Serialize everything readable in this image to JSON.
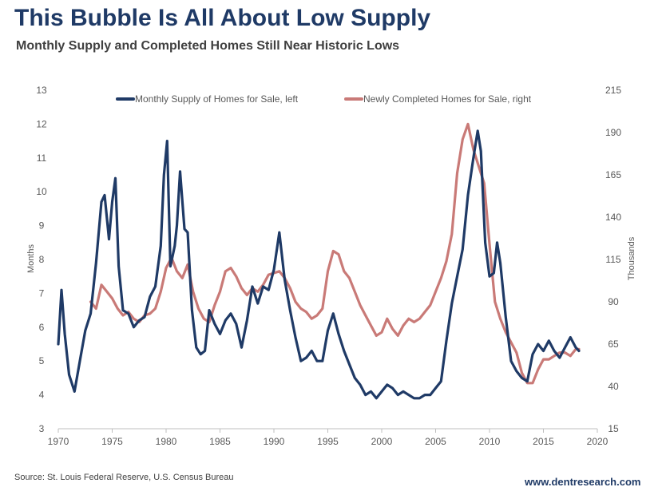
{
  "header": {
    "title": "This Bubble Is All About Low Supply",
    "subtitle": "Monthly Supply and Completed Homes Still Near Historic Lows"
  },
  "footer": {
    "source": "Source: St. Louis Federal Reserve, U.S. Census Bureau",
    "website": "www.dentresearch.com"
  },
  "colors": {
    "supply": "#1f3a66",
    "completed": "#c97a77"
  },
  "chart_data": {
    "type": "line",
    "title": "",
    "x_axis": {
      "min": 1970,
      "max": 2020,
      "ticks": [
        "1970",
        "1975",
        "1980",
        "1985",
        "1990",
        "1995",
        "2000",
        "2005",
        "2010",
        "2015",
        "2020"
      ]
    },
    "y_left": {
      "label": "Months",
      "min": 3,
      "max": 13,
      "ticks": [
        "3",
        "4",
        "5",
        "6",
        "7",
        "8",
        "9",
        "10",
        "11",
        "12",
        "13"
      ]
    },
    "y_right": {
      "label": "Thousands",
      "min": 15,
      "max": 215,
      "ticks": [
        "15",
        "40",
        "65",
        "90",
        "115",
        "140",
        "165",
        "190",
        "215"
      ]
    },
    "legend": {
      "position": "top-center"
    },
    "series": [
      {
        "name": "Monthly Supply of Homes for Sale, left",
        "axis": "left",
        "x": [
          1970.0,
          1970.3,
          1970.6,
          1971.0,
          1971.5,
          1972.0,
          1972.5,
          1973.0,
          1973.5,
          1974.0,
          1974.3,
          1974.7,
          1975.0,
          1975.3,
          1975.6,
          1976.0,
          1976.5,
          1977.0,
          1977.5,
          1978.0,
          1978.5,
          1979.0,
          1979.5,
          1979.8,
          1980.1,
          1980.4,
          1980.8,
          1981.0,
          1981.3,
          1981.7,
          1982.0,
          1982.4,
          1982.8,
          1983.2,
          1983.6,
          1984.0,
          1984.5,
          1985.0,
          1985.5,
          1986.0,
          1986.5,
          1987.0,
          1987.5,
          1988.0,
          1988.5,
          1989.0,
          1989.5,
          1990.0,
          1990.5,
          1991.0,
          1991.5,
          1992.0,
          1992.5,
          1993.0,
          1993.5,
          1994.0,
          1994.5,
          1995.0,
          1995.5,
          1996.0,
          1996.5,
          1997.0,
          1997.5,
          1998.0,
          1998.5,
          1999.0,
          1999.5,
          2000.0,
          2000.5,
          2001.0,
          2001.5,
          2002.0,
          2002.5,
          2003.0,
          2003.5,
          2004.0,
          2004.5,
          2005.0,
          2005.5,
          2006.0,
          2006.5,
          2007.0,
          2007.5,
          2008.0,
          2008.5,
          2008.9,
          2009.2,
          2009.6,
          2010.0,
          2010.4,
          2010.7,
          2011.0,
          2011.5,
          2012.0,
          2012.5,
          2013.0,
          2013.5,
          2014.0,
          2014.5,
          2015.0,
          2015.5,
          2016.0,
          2016.5,
          2017.0,
          2017.5,
          2018.0,
          2018.3
        ],
        "values": [
          5.5,
          7.1,
          5.8,
          4.6,
          4.1,
          5.0,
          5.9,
          6.4,
          7.9,
          9.7,
          9.9,
          8.6,
          9.7,
          10.4,
          7.8,
          6.5,
          6.4,
          6.0,
          6.2,
          6.3,
          6.9,
          7.2,
          8.4,
          10.5,
          11.5,
          7.8,
          8.4,
          9.0,
          10.6,
          8.9,
          8.8,
          6.5,
          5.4,
          5.2,
          5.3,
          6.5,
          6.1,
          5.8,
          6.2,
          6.4,
          6.1,
          5.4,
          6.2,
          7.2,
          6.7,
          7.2,
          7.1,
          7.7,
          8.8,
          7.4,
          6.5,
          5.7,
          5.0,
          5.1,
          5.3,
          5.0,
          5.0,
          5.9,
          6.4,
          5.8,
          5.3,
          4.9,
          4.5,
          4.3,
          4.0,
          4.1,
          3.9,
          4.1,
          4.3,
          4.2,
          4.0,
          4.1,
          4.0,
          3.9,
          3.9,
          4.0,
          4.0,
          4.2,
          4.4,
          5.6,
          6.7,
          7.5,
          8.3,
          9.9,
          11.0,
          11.8,
          11.2,
          8.5,
          7.5,
          7.6,
          8.5,
          7.9,
          6.3,
          5.0,
          4.7,
          4.5,
          4.4,
          5.2,
          5.5,
          5.3,
          5.6,
          5.3,
          5.1,
          5.4,
          5.7,
          5.4,
          5.3
        ]
      },
      {
        "name": "Newly Completed Homes for Sale, right",
        "axis": "right",
        "x": [
          1973.0,
          1973.5,
          1974.0,
          1974.5,
          1975.0,
          1975.5,
          1976.0,
          1976.5,
          1977.0,
          1977.5,
          1978.0,
          1978.5,
          1979.0,
          1979.5,
          1980.0,
          1980.5,
          1981.0,
          1981.5,
          1982.0,
          1982.5,
          1983.0,
          1983.5,
          1984.0,
          1984.5,
          1985.0,
          1985.5,
          1986.0,
          1986.5,
          1987.0,
          1987.5,
          1988.0,
          1988.5,
          1989.0,
          1989.5,
          1990.0,
          1990.5,
          1991.0,
          1991.5,
          1992.0,
          1992.5,
          1993.0,
          1993.5,
          1994.0,
          1994.5,
          1995.0,
          1995.5,
          1996.0,
          1996.5,
          1997.0,
          1997.5,
          1998.0,
          1998.5,
          1999.0,
          1999.5,
          2000.0,
          2000.5,
          2001.0,
          2001.5,
          2002.0,
          2002.5,
          2003.0,
          2003.5,
          2004.0,
          2004.5,
          2005.0,
          2005.5,
          2006.0,
          2006.5,
          2007.0,
          2007.5,
          2008.0,
          2008.5,
          2009.0,
          2009.5,
          2010.0,
          2010.5,
          2011.0,
          2011.5,
          2012.0,
          2012.5,
          2013.0,
          2013.5,
          2014.0,
          2014.5,
          2015.0,
          2015.5,
          2016.0,
          2016.5,
          2017.0,
          2017.5,
          2018.0,
          2018.3
        ],
        "values": [
          90,
          86,
          100,
          96,
          92,
          86,
          82,
          84,
          80,
          78,
          82,
          83,
          86,
          96,
          110,
          116,
          108,
          104,
          112,
          96,
          86,
          80,
          78,
          88,
          96,
          108,
          110,
          105,
          98,
          94,
          98,
          96,
          100,
          106,
          107,
          108,
          104,
          98,
          90,
          86,
          84,
          80,
          82,
          86,
          108,
          120,
          118,
          108,
          104,
          96,
          88,
          82,
          76,
          70,
          72,
          80,
          74,
          70,
          76,
          80,
          78,
          80,
          84,
          88,
          96,
          104,
          114,
          130,
          166,
          186,
          195,
          180,
          170,
          160,
          124,
          90,
          80,
          72,
          66,
          60,
          48,
          42,
          42,
          50,
          56,
          56,
          58,
          60,
          60,
          58,
          62,
          62
        ]
      }
    ]
  }
}
